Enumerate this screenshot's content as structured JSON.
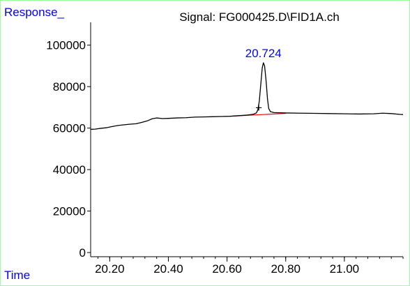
{
  "chart_data": {
    "type": "line",
    "title": "Signal: FG000425.D\\FID1A.ch",
    "ylabel": "Response_",
    "xlabel": "Time",
    "xlim": [
      20.135,
      21.2
    ],
    "ylim": [
      -2000,
      111000
    ],
    "x_ticks": [
      20.2,
      20.4,
      20.6,
      20.8,
      21.0
    ],
    "x_tick_labels": [
      "20.20",
      "20.40",
      "20.60",
      "20.80",
      "21.00"
    ],
    "y_ticks": [
      0,
      20000,
      40000,
      60000,
      80000,
      100000
    ],
    "y_tick_labels": [
      "0",
      "20000",
      "40000",
      "60000",
      "80000",
      "100000"
    ],
    "grid": false,
    "series": [
      {
        "color": "#000000",
        "points": [
          [
            20.135,
            59400
          ],
          [
            20.15,
            59500
          ],
          [
            20.17,
            59900
          ],
          [
            20.19,
            60200
          ],
          [
            20.21,
            60800
          ],
          [
            20.23,
            61300
          ],
          [
            20.25,
            61600
          ],
          [
            20.27,
            61900
          ],
          [
            20.29,
            62100
          ],
          [
            20.31,
            62800
          ],
          [
            20.33,
            63600
          ],
          [
            20.345,
            64500
          ],
          [
            20.36,
            64900
          ],
          [
            20.38,
            64600
          ],
          [
            20.4,
            64700
          ],
          [
            20.43,
            64900
          ],
          [
            20.46,
            65000
          ],
          [
            20.49,
            65300
          ],
          [
            20.52,
            65400
          ],
          [
            20.55,
            65500
          ],
          [
            20.58,
            65600
          ],
          [
            20.61,
            65700
          ],
          [
            20.64,
            66000
          ],
          [
            20.67,
            66300
          ],
          [
            20.69,
            66700
          ],
          [
            20.7,
            67300
          ],
          [
            20.705,
            68800
          ],
          [
            20.71,
            73000
          ],
          [
            20.715,
            81000
          ],
          [
            20.72,
            89000
          ],
          [
            20.724,
            91500
          ],
          [
            20.728,
            90000
          ],
          [
            20.733,
            83000
          ],
          [
            20.738,
            74000
          ],
          [
            20.742,
            69500
          ],
          [
            20.748,
            67900
          ],
          [
            20.76,
            67500
          ],
          [
            20.8,
            67300
          ],
          [
            20.85,
            67200
          ],
          [
            20.9,
            67100
          ],
          [
            20.95,
            67000
          ],
          [
            21.0,
            66900
          ],
          [
            21.05,
            66800
          ],
          [
            21.1,
            66900
          ],
          [
            21.13,
            67200
          ],
          [
            21.16,
            67000
          ],
          [
            21.19,
            66600
          ],
          [
            21.2,
            66500
          ]
        ]
      }
    ],
    "baseline": {
      "color": "#ff0000",
      "points": [
        [
          20.62,
          65800
        ],
        [
          20.8,
          67100
        ]
      ]
    },
    "peaks": [
      {
        "x": 20.724,
        "y": 91500,
        "label": "20.724",
        "color": "#0000ff"
      }
    ],
    "markers": [
      {
        "x": 20.708,
        "y": 70000,
        "symbol": "+"
      }
    ],
    "colors": {
      "frame": "#99ff99",
      "axis_label": "#0000ff",
      "trace": "#000000",
      "baseline": "#ff0000",
      "peak_label": "#0000ff"
    }
  }
}
